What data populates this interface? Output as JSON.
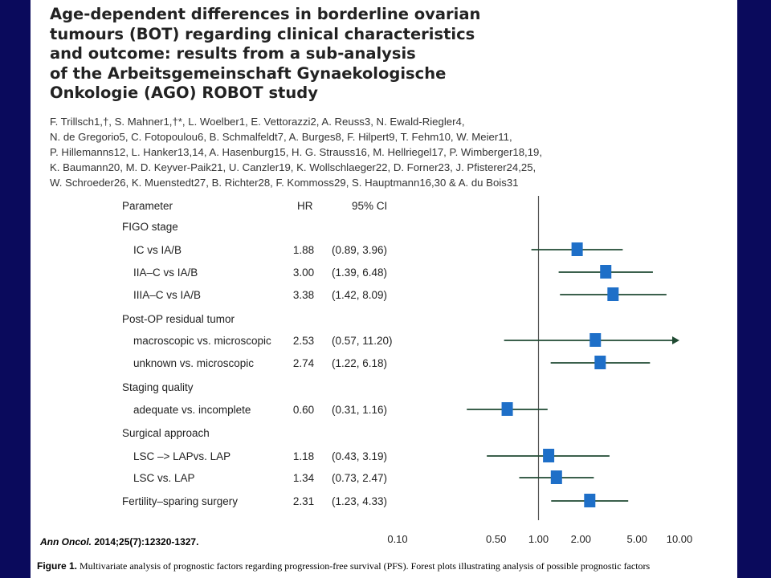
{
  "title": "Age-dependent differences in borderline ovarian tumours (BOT) regarding clinical characteristics and outcome: results from a sub-analysis of the Arbeitsgemeinschaft Gynaekologische Onkologie (AGO) ROBOT study",
  "title_lines": [
    "Age-dependent differences in borderline ovarian",
    "tumours (BOT) regarding clinical characteristics",
    "and outcome: results from a sub-analysis",
    "of the Arbeitsgemeinschaft Gynaekologische",
    "Onkologie (AGO) ROBOT study"
  ],
  "authors_lines": [
    "F. Trillsch1,†, S. Mahner1,†*, L. Woelber1, E. Vettorazzi2, A. Reuss3, N. Ewald-Riegler4,",
    "N. de Gregorio5, C. Fotopoulou6, B. Schmalfeldt7, A. Burges8, F. Hilpert9, T. Fehm10, W. Meier11,",
    "P. Hillemanns12, L. Hanker13,14, A. Hasenburg15, H. G. Strauss16, M. Hellriegel17, P. Wimberger18,19,",
    "K. Baumann20, M. D. Keyver-Paik21, U. Canzler19, K. Wollschlaeger22, D. Forner23, J. Pfisterer24,25,",
    "W. Schroeder26, K. Muenstedt27, B. Richter28, F. Kommoss29, S. Hauptmann16,30 & A. du Bois31"
  ],
  "chart_data": {
    "type": "forest",
    "scale": "log",
    "xlim": [
      0.1,
      10
    ],
    "reference_line": 1.0,
    "x_ticks": [
      "0.10",
      "0.50",
      "1.00",
      "2.00",
      "5.00",
      "10.00"
    ],
    "x_tick_values": [
      0.1,
      0.5,
      1,
      2,
      5,
      10
    ],
    "columns": {
      "parameter": "Parameter",
      "hr": "HR",
      "ci": "95% CI"
    },
    "rows": [
      {
        "kind": "group",
        "label": "FIGO stage"
      },
      {
        "kind": "item",
        "label": "IC vs IA/B",
        "hr_text": "1.88",
        "ci_text": "(0.89, 3.96)",
        "hr": 1.88,
        "lo": 0.89,
        "hi": 3.96
      },
      {
        "kind": "item",
        "label": "IIA–C vs IA/B",
        "hr_text": "3.00",
        "ci_text": "(1.39, 6.48)",
        "hr": 3.0,
        "lo": 1.39,
        "hi": 6.48
      },
      {
        "kind": "item",
        "label": "IIIA–C vs IA/B",
        "hr_text": "3.38",
        "ci_text": "(1.42, 8.09)",
        "hr": 3.38,
        "lo": 1.42,
        "hi": 8.09
      },
      {
        "kind": "group",
        "label": "Post-OP residual tumor"
      },
      {
        "kind": "item",
        "label": "macroscopic vs. microscopic",
        "hr_text": "2.53",
        "ci_text": "(0.57, 11.20)",
        "hr": 2.53,
        "lo": 0.57,
        "hi": 11.2,
        "arrow": true
      },
      {
        "kind": "item",
        "label": "unknown vs. microscopic",
        "hr_text": "2.74",
        "ci_text": "(1.22, 6.18)",
        "hr": 2.74,
        "lo": 1.22,
        "hi": 6.18
      },
      {
        "kind": "group",
        "label": "Staging quality"
      },
      {
        "kind": "item",
        "label": "adequate vs. incomplete",
        "hr_text": "0.60",
        "ci_text": "(0.31, 1.16)",
        "hr": 0.6,
        "lo": 0.31,
        "hi": 1.16
      },
      {
        "kind": "group",
        "label": "Surgical approach"
      },
      {
        "kind": "item",
        "label": "LSC –> LAPvs. LAP",
        "hr_text": "1.18",
        "ci_text": "(0.43, 3.19)",
        "hr": 1.18,
        "lo": 0.43,
        "hi": 3.19
      },
      {
        "kind": "item",
        "label": "LSC vs. LAP",
        "hr_text": "1.34",
        "ci_text": "(0.73, 2.47)",
        "hr": 1.34,
        "lo": 0.73,
        "hi": 2.47
      },
      {
        "kind": "top",
        "label": "Fertility–sparing surgery",
        "hr_text": "2.31",
        "ci_text": "(1.23, 4.33)",
        "hr": 2.31,
        "lo": 1.23,
        "hi": 4.33
      }
    ],
    "colors": {
      "marker": "#1e6fc8",
      "whisker": "#1f4a32",
      "reference": "#555555"
    }
  },
  "citation": {
    "journal": "Ann Oncol.",
    "details": " 2014;25(7):12320-1327."
  },
  "caption": {
    "label": "Figure 1.",
    "text": " Multivariate analysis of prognostic factors regarding progression-free survival (PFS). Forest plots illustrating analysis of possible prognostic factors"
  }
}
